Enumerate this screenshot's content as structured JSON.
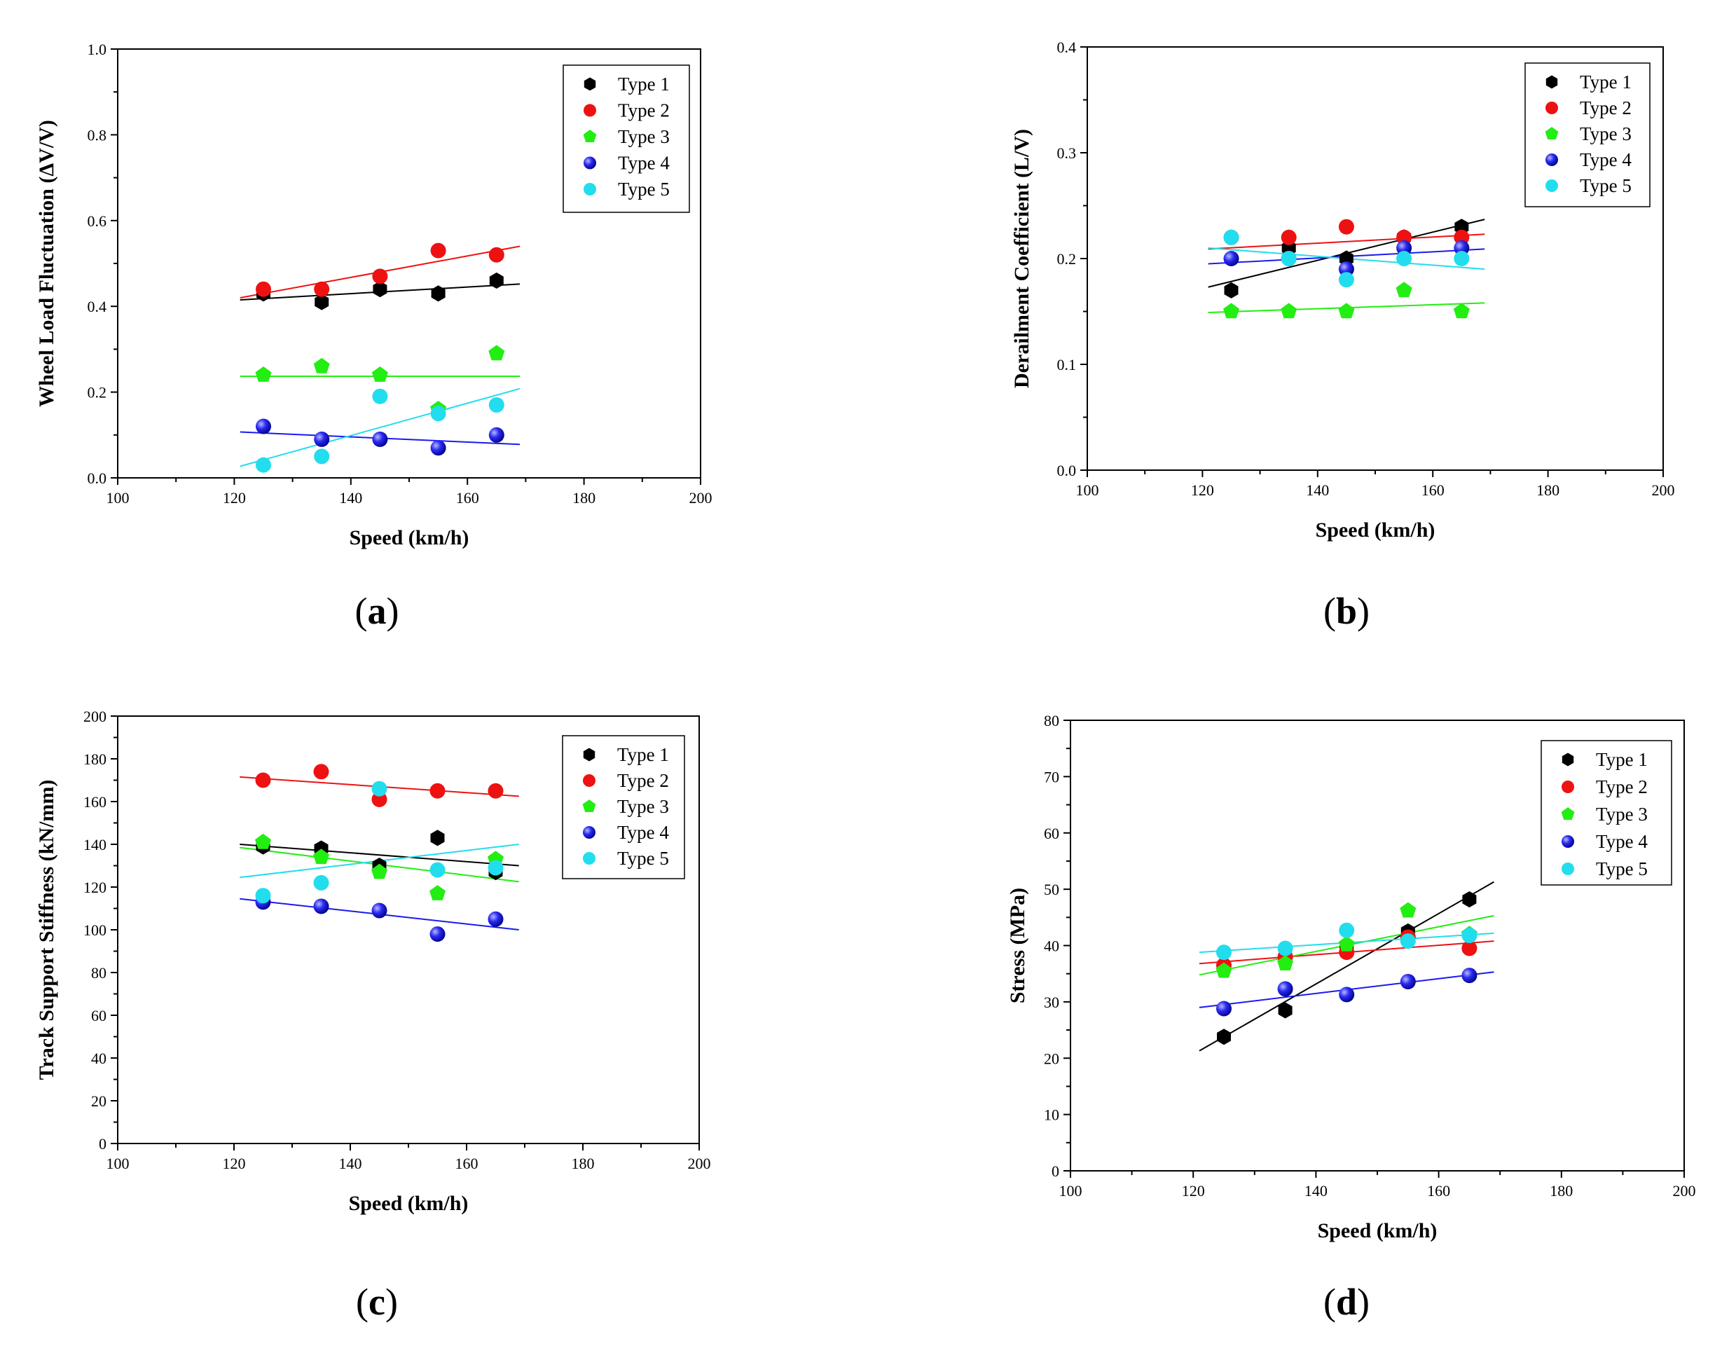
{
  "chart_data": [
    {
      "id": "a",
      "type": "scatter",
      "panel_label": "a",
      "xlabel": "Speed (km/h)",
      "ylabel": "Wheel Load Fluctuation (ΔV/V)",
      "xlim": [
        100,
        200
      ],
      "ylim": [
        0,
        1.0
      ],
      "xticks": [
        100,
        120,
        140,
        160,
        180,
        200
      ],
      "xtick_labels": [
        "100",
        "120",
        "140",
        "160",
        "180",
        "200"
      ],
      "yticks": [
        0,
        0.2,
        0.4,
        0.6,
        0.8,
        1.0
      ],
      "ytick_labels": [
        "0.0",
        "0.2",
        "0.4",
        "0.6",
        "0.8",
        "1.0"
      ],
      "legend_position": "top-right",
      "grid": false,
      "x": [
        125,
        135,
        145,
        155,
        165
      ],
      "series": [
        {
          "name": "Type 1",
          "color": "#000000",
          "marker": "hexagon",
          "values": [
            0.43,
            0.41,
            0.44,
            0.43,
            0.46
          ],
          "fit": [
            [
              121,
              0.415
            ],
            [
              169,
              0.452
            ]
          ]
        },
        {
          "name": "Type 2",
          "color": "#ee1111",
          "marker": "circle",
          "values": [
            0.44,
            0.44,
            0.47,
            0.53,
            0.52
          ],
          "fit": [
            [
              121,
              0.42
            ],
            [
              169,
              0.54
            ]
          ]
        },
        {
          "name": "Type 3",
          "color": "#22ee11",
          "marker": "pentagon",
          "values": [
            0.24,
            0.26,
            0.24,
            0.16,
            0.29
          ],
          "fit": [
            [
              121,
              0.237
            ],
            [
              169,
              0.237
            ]
          ]
        },
        {
          "name": "Type 4",
          "color": "#1a1aee",
          "marker": "sphere",
          "values": [
            0.12,
            0.09,
            0.09,
            0.07,
            0.1
          ],
          "fit": [
            [
              121,
              0.107
            ],
            [
              169,
              0.078
            ]
          ]
        },
        {
          "name": "Type 5",
          "color": "#22ddee",
          "marker": "circle",
          "values": [
            0.03,
            0.05,
            0.19,
            0.15,
            0.17
          ],
          "fit": [
            [
              121,
              0.027
            ],
            [
              169,
              0.208
            ]
          ]
        }
      ]
    },
    {
      "id": "b",
      "type": "scatter",
      "panel_label": "b",
      "xlabel": "Speed (km/h)",
      "ylabel": "Derailment Coefficient (L/V)",
      "xlim": [
        100,
        200
      ],
      "ylim": [
        0,
        0.4
      ],
      "xticks": [
        100,
        120,
        140,
        160,
        180,
        200
      ],
      "xtick_labels": [
        "100",
        "120",
        "140",
        "160",
        "180",
        "200"
      ],
      "yticks": [
        0,
        0.1,
        0.2,
        0.3,
        0.4
      ],
      "ytick_labels": [
        "0.0",
        "0.1",
        "0.2",
        "0.3",
        "0.4"
      ],
      "legend_position": "top-right",
      "grid": false,
      "x": [
        125,
        135,
        145,
        155,
        165
      ],
      "series": [
        {
          "name": "Type 1",
          "color": "#000000",
          "marker": "hexagon",
          "values": [
            0.17,
            0.21,
            0.2,
            0.22,
            0.23
          ],
          "fit": [
            [
              121,
              0.173
            ],
            [
              169,
              0.237
            ]
          ]
        },
        {
          "name": "Type 2",
          "color": "#ee1111",
          "marker": "circle",
          "values": [
            0.22,
            0.22,
            0.23,
            0.22,
            0.22
          ],
          "fit": [
            [
              121,
              0.209
            ],
            [
              169,
              0.223
            ]
          ]
        },
        {
          "name": "Type 3",
          "color": "#22ee11",
          "marker": "pentagon",
          "values": [
            0.15,
            0.15,
            0.15,
            0.17,
            0.15
          ],
          "fit": [
            [
              121,
              0.149
            ],
            [
              169,
              0.158
            ]
          ]
        },
        {
          "name": "Type 4",
          "color": "#1a1aee",
          "marker": "sphere",
          "values": [
            0.2,
            0.2,
            0.19,
            0.21,
            0.21
          ],
          "fit": [
            [
              121,
              0.195
            ],
            [
              169,
              0.209
            ]
          ]
        },
        {
          "name": "Type 5",
          "color": "#22ddee",
          "marker": "circle",
          "values": [
            0.22,
            0.2,
            0.18,
            0.2,
            0.2
          ],
          "fit": [
            [
              121,
              0.21
            ],
            [
              169,
              0.19
            ]
          ]
        }
      ]
    },
    {
      "id": "c",
      "type": "scatter",
      "panel_label": "c",
      "xlabel": "Speed (km/h)",
      "ylabel": "Track Support Stiffness (kN/mm)",
      "xlim": [
        100,
        200
      ],
      "ylim": [
        0,
        200
      ],
      "xticks": [
        100,
        120,
        140,
        160,
        180,
        200
      ],
      "xtick_labels": [
        "100",
        "120",
        "140",
        "160",
        "180",
        "200"
      ],
      "yticks": [
        0,
        20,
        40,
        60,
        80,
        100,
        120,
        140,
        160,
        180,
        200
      ],
      "ytick_labels": [
        "0",
        "20",
        "40",
        "60",
        "80",
        "100",
        "120",
        "140",
        "160",
        "180",
        "200"
      ],
      "legend_position": "top-right",
      "grid": false,
      "x": [
        125,
        135,
        145,
        155,
        165
      ],
      "series": [
        {
          "name": "Type 1",
          "color": "#000000",
          "marker": "hexagon",
          "values": [
            139,
            138,
            130,
            143,
            127
          ],
          "fit": [
            [
              121,
              140
            ],
            [
              169,
              130
            ]
          ]
        },
        {
          "name": "Type 2",
          "color": "#ee1111",
          "marker": "circle",
          "values": [
            170,
            174,
            161,
            165,
            165
          ],
          "fit": [
            [
              121,
              171.5
            ],
            [
              169,
              162.5
            ]
          ]
        },
        {
          "name": "Type 3",
          "color": "#22ee11",
          "marker": "pentagon",
          "values": [
            141,
            134,
            127,
            117,
            133
          ],
          "fit": [
            [
              121,
              138.5
            ],
            [
              169,
              122.5
            ]
          ]
        },
        {
          "name": "Type 4",
          "color": "#1a1aee",
          "marker": "sphere",
          "values": [
            113,
            111,
            109,
            98,
            105
          ],
          "fit": [
            [
              121,
              114.5
            ],
            [
              169,
              100
            ]
          ]
        },
        {
          "name": "Type 5",
          "color": "#22ddee",
          "marker": "circle",
          "values": [
            116,
            122,
            166,
            128,
            129
          ],
          "fit": [
            [
              121,
              124.5
            ],
            [
              169,
              140
            ]
          ]
        }
      ]
    },
    {
      "id": "d",
      "type": "scatter",
      "panel_label": "d",
      "xlabel": "Speed (km/h)",
      "ylabel": "Stress (MPa)",
      "xlim": [
        100,
        200
      ],
      "ylim": [
        0,
        80
      ],
      "xticks": [
        100,
        120,
        140,
        160,
        180,
        200
      ],
      "xtick_labels": [
        "100",
        "120",
        "140",
        "160",
        "180",
        "200"
      ],
      "yticks": [
        0,
        10,
        20,
        30,
        40,
        50,
        60,
        70,
        80
      ],
      "ytick_labels": [
        "0",
        "10",
        "20",
        "30",
        "40",
        "50",
        "60",
        "70",
        "80"
      ],
      "legend_position": "top-right",
      "grid": false,
      "x": [
        125,
        135,
        145,
        155,
        165
      ],
      "series": [
        {
          "name": "Type 1",
          "color": "#000000",
          "marker": "hexagon",
          "values": [
            23.8,
            28.5,
            39.5,
            42.5,
            48.2
          ],
          "fit": [
            [
              121,
              21.3
            ],
            [
              169,
              51.3
            ]
          ]
        },
        {
          "name": "Type 2",
          "color": "#ee1111",
          "marker": "circle",
          "values": [
            36.5,
            38.0,
            38.8,
            41.5,
            39.5
          ],
          "fit": [
            [
              121,
              36.8
            ],
            [
              169,
              40.8
            ]
          ]
        },
        {
          "name": "Type 3",
          "color": "#22ee11",
          "marker": "pentagon",
          "values": [
            35.5,
            36.8,
            40.2,
            46.2,
            42.0
          ],
          "fit": [
            [
              121,
              34.8
            ],
            [
              169,
              45.3
            ]
          ]
        },
        {
          "name": "Type 4",
          "color": "#1a1aee",
          "marker": "sphere",
          "values": [
            28.8,
            32.3,
            31.3,
            33.6,
            34.7
          ],
          "fit": [
            [
              121,
              29.0
            ],
            [
              169,
              35.3
            ]
          ]
        },
        {
          "name": "Type 5",
          "color": "#22ddee",
          "marker": "circle",
          "values": [
            38.8,
            39.5,
            42.7,
            40.8,
            41.8
          ],
          "fit": [
            [
              121,
              38.8
            ],
            [
              169,
              42.2
            ]
          ]
        }
      ]
    }
  ]
}
